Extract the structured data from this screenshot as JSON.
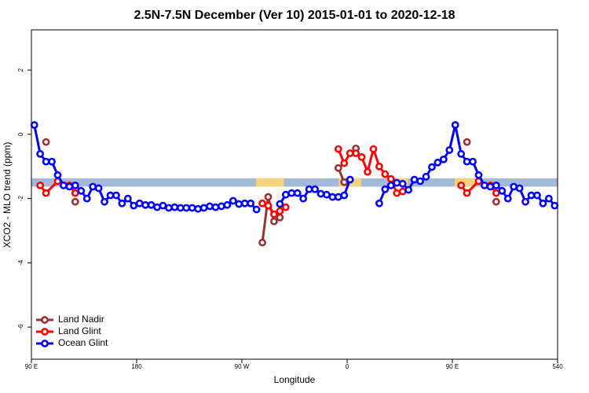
{
  "chart_data": {
    "type": "line",
    "title": "2.5N-7.5N December (Ver 10)   2015-01-01 to 2020-12-18",
    "x_label": "Longitude",
    "y_label": "XCO2 - MLO trend (ppm)",
    "xlim": [
      90,
      540
    ],
    "ylim": [
      -7,
      3.25
    ],
    "xticks": [
      {
        "value": 90,
        "label": "90 E"
      },
      180,
      {
        "value": 270,
        "label": "90 W"
      },
      {
        "value": 360,
        "label": "0"
      },
      {
        "value": 450,
        "label": "90 E"
      },
      540
    ],
    "yticks": [
      -6,
      -4,
      -2,
      0,
      2
    ],
    "band_range": [
      -1.63,
      -1.37
    ],
    "band_color": "#a3b9d9",
    "highlight_color": "#f5d37a",
    "highlight_x": [
      [
        282,
        306
      ],
      [
        353,
        372
      ],
      [
        402,
        412
      ],
      [
        452,
        470
      ]
    ],
    "legend": "bottom-left",
    "series": [
      {
        "name": "Land Nadir",
        "color": "#993333",
        "x": [
          102.5,
          null,
          127.5,
          null,
          287.5,
          292.5,
          297.5,
          302.5,
          null,
          352.5,
          357.5,
          null,
          367.5,
          null,
          462.5,
          null,
          487.5
        ],
        "values": [
          -0.24,
          null,
          -2.1,
          null,
          -3.37,
          -1.95,
          -2.71,
          -2.59,
          null,
          -1.05,
          -1.49,
          null,
          -0.44,
          null,
          -0.24,
          null,
          -2.1
        ]
      },
      {
        "name": "Land Glint",
        "color": "#ff0000",
        "x": [
          97.5,
          102.5,
          112.5,
          122.5,
          127.5,
          null,
          287.5,
          292.5,
          297.5,
          302.5,
          307.5,
          null,
          352.5,
          357.5,
          362.5,
          367.5,
          372.5,
          377.5,
          382.5,
          387.5,
          392.5,
          397.5,
          402.5,
          407.5,
          null,
          457.5,
          462.5,
          472.5,
          482.5,
          487.5
        ],
        "values": [
          -1.59,
          -1.83,
          -1.46,
          -1.59,
          -1.83,
          null,
          -2.15,
          -2.22,
          -2.49,
          -2.39,
          -2.27,
          null,
          -0.46,
          -0.9,
          -0.59,
          -0.59,
          -0.71,
          -1.17,
          -0.46,
          -1.0,
          -1.24,
          -1.39,
          -1.83,
          -1.78,
          null,
          -1.59,
          -1.83,
          -1.46,
          -1.59,
          -1.83
        ]
      },
      {
        "name": "Ocean Glint",
        "color": "#0000ff",
        "x": [
          92.5,
          97.5,
          102.5,
          107.5,
          112.5,
          117.5,
          122.5,
          127.5,
          132.5,
          137.5,
          142.5,
          147.5,
          152.5,
          157.5,
          162.5,
          167.5,
          172.5,
          177.5,
          182.5,
          187.5,
          192.5,
          197.5,
          202.5,
          207.5,
          212.5,
          217.5,
          222.5,
          227.5,
          232.5,
          237.5,
          242.5,
          247.5,
          252.5,
          257.5,
          262.5,
          267.5,
          272.5,
          277.5,
          282.5,
          287.5,
          292.5,
          297.5,
          302.5,
          307.5,
          312.5,
          317.5,
          322.5,
          327.5,
          332.5,
          337.5,
          342.5,
          347.5,
          352.5,
          357.5,
          362.5,
          367.5,
          372.5,
          377.5,
          382.5,
          387.5,
          392.5,
          397.5,
          402.5,
          407.5,
          412.5,
          417.5,
          422.5,
          427.5,
          432.5,
          437.5,
          442.5,
          447.5,
          452.5,
          457.5,
          462.5,
          467.5,
          472.5,
          477.5,
          482.5,
          487.5,
          492.5,
          497.5,
          502.5,
          507.5,
          512.5,
          517.5,
          522.5,
          527.5,
          532.5,
          537.5
        ],
        "values": [
          0.29,
          -0.61,
          -0.85,
          -0.85,
          -1.27,
          -1.59,
          -1.63,
          -1.59,
          -1.76,
          -2.0,
          -1.63,
          -1.68,
          -2.1,
          -1.9,
          -1.9,
          -2.15,
          -2.0,
          -2.22,
          -2.15,
          -2.2,
          -2.2,
          -2.27,
          -2.22,
          -2.29,
          -2.27,
          -2.29,
          -2.29,
          -2.29,
          -2.32,
          -2.29,
          -2.24,
          -2.27,
          -2.24,
          -2.2,
          -2.07,
          -2.17,
          -2.15,
          -2.15,
          -2.34,
          null,
          null,
          null,
          -2.17,
          -1.88,
          -1.83,
          -1.83,
          -2.0,
          -1.71,
          -1.71,
          -1.85,
          -1.88,
          -1.95,
          -1.95,
          -1.9,
          -1.41,
          null,
          null,
          null,
          null,
          -2.15,
          -1.71,
          -1.59,
          -1.51,
          -1.54,
          -1.73,
          -1.41,
          -1.46,
          -1.32,
          -1.02,
          -0.88,
          -0.78,
          -0.49,
          0.29,
          -0.61,
          -0.85,
          -0.85,
          -1.27,
          -1.59,
          -1.63,
          -1.59,
          -1.76,
          -2.0,
          -1.63,
          -1.68,
          -2.1,
          -1.9,
          -1.9,
          -2.15,
          -2.0,
          -2.22
        ]
      }
    ]
  }
}
